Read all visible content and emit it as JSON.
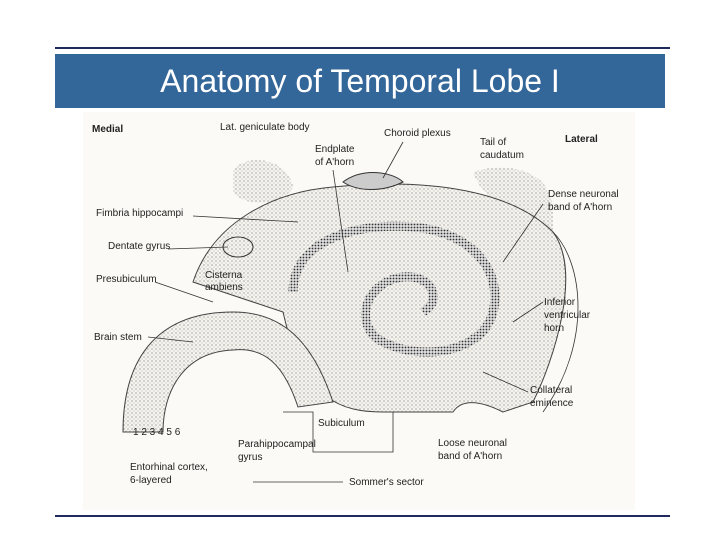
{
  "title": "Anatomy of Temporal Lobe I",
  "labels": {
    "medial": "Medial",
    "lat_geniculate": "Lat. geniculate body",
    "choroid_plexus": "Choroid plexus",
    "tail_caudatum": [
      "Tail of",
      "caudatum"
    ],
    "lateral": "Lateral",
    "endplate": [
      "Endplate",
      "of A'horn"
    ],
    "dense_band": [
      "Dense neuronal",
      "band of A'horn"
    ],
    "fimbria": "Fimbria hippocampi",
    "dentate_gyrus": "Dentate gyrus",
    "cisterna": [
      "Cisterna",
      "ambiens"
    ],
    "presubiculum": "Presubiculum",
    "inferior_horn": [
      "Inferior",
      "ventricular",
      "horn"
    ],
    "brain_stem": "Brain stem",
    "collateral": [
      "Collateral",
      "eminence"
    ],
    "layers": "1 2 3 4 5 6",
    "subiculum": "Subiculum",
    "loose_band": [
      "Loose neuronal",
      "band of A'horn"
    ],
    "parahippocampal": [
      "Parahippocampal",
      "gyrus"
    ],
    "entorhinal": [
      "Entorhinal cortex,",
      "6-layered"
    ],
    "sommer": "Sommer's sector"
  }
}
